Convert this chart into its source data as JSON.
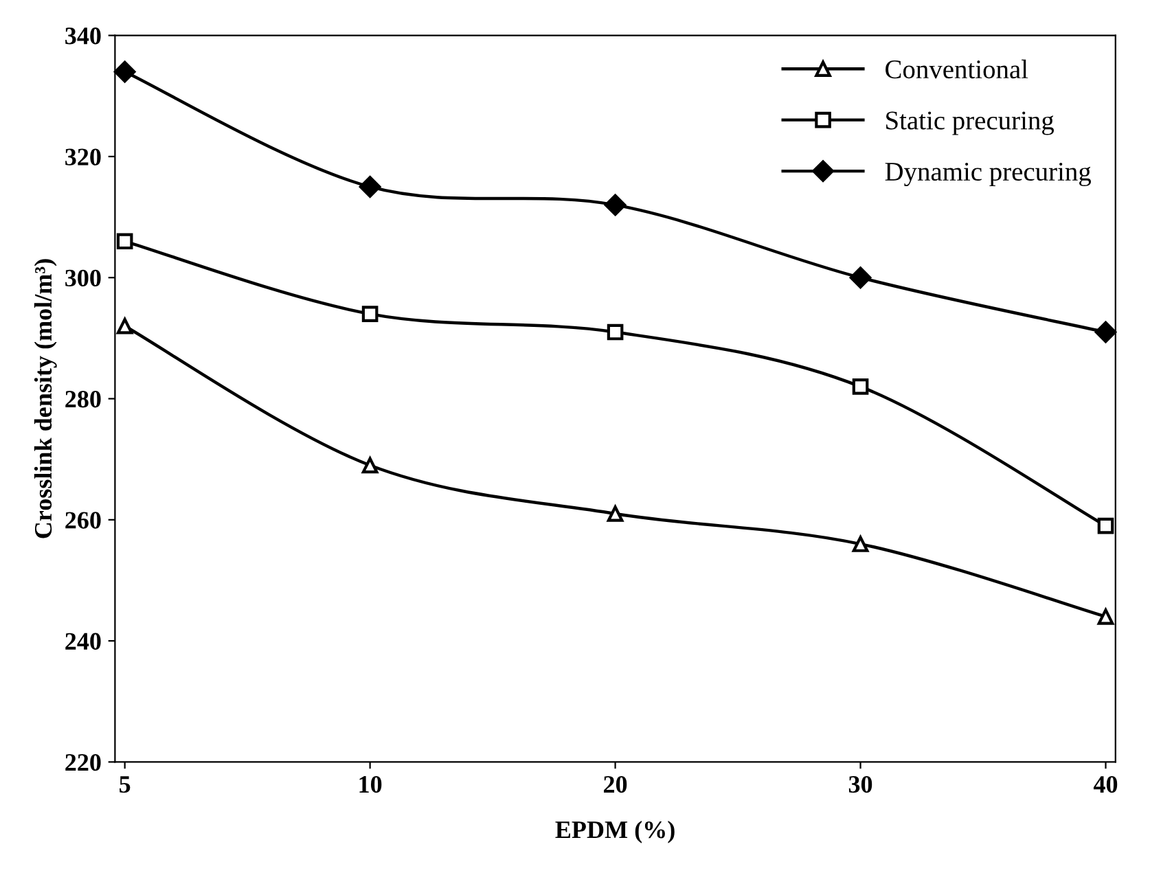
{
  "chart_data": {
    "type": "line",
    "xlabel": "EPDM (%)",
    "ylabel": "Crosslink density (mol/m³)",
    "categories": [
      "5",
      "10",
      "20",
      "30",
      "40"
    ],
    "ylim": [
      220,
      340
    ],
    "yticks": [
      220,
      240,
      260,
      280,
      300,
      320,
      340
    ],
    "grid": false,
    "legend": "top right",
    "line_style": "solid",
    "series": [
      {
        "name": "Conventional",
        "color": "#000000",
        "marker": "triangle",
        "values": [
          292,
          269,
          261,
          256,
          244
        ]
      },
      {
        "name": "Static precuring",
        "color": "#000000",
        "marker": "square",
        "values": [
          306,
          294,
          291,
          282,
          259
        ]
      },
      {
        "name": "Dynamic precuring",
        "color": "#000000",
        "marker": "diamond",
        "values": [
          334,
          315,
          312,
          300,
          291
        ]
      }
    ]
  }
}
